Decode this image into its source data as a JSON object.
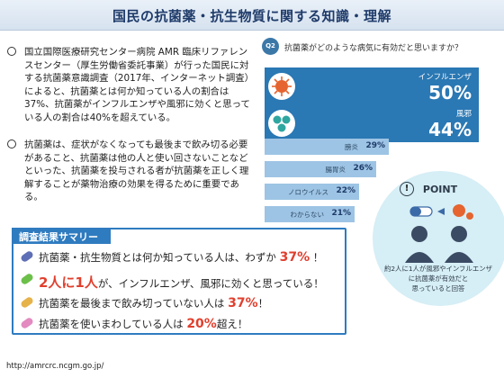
{
  "title": "国民の抗菌薬・抗生物質に関する知識・理解",
  "paragraphs": {
    "p1": "国立国際医療研究センター病院 AMR 臨床リファレンスセンター（厚生労働省委託事業）が行った国民に対する抗菌薬意識調査（2017年、インターネット調査）によると、抗菌薬とは何か知っている人の割合は37%、抗菌薬がインフルエンザや風邪に効くと思っている人の割合は40%を超えている。",
    "p2": "抗菌薬は、症状がなくなっても最後まで飲み切る必要があること、抗菌薬は他の人と使い回さないことなどといった、抗菌薬を投与される者が抗菌薬を正しく理解することが薬物治療の効果を得るために重要である。"
  },
  "question": {
    "badge": "Q2",
    "text": "抗菌薬がどのような病気に有効だと思いますか？"
  },
  "chart_data": {
    "type": "bar",
    "categories": [
      "インフルエンザ",
      "風邪",
      "膀炎",
      "腸胃炎",
      "ノロウイルス",
      "わからない"
    ],
    "values": [
      50,
      44,
      29,
      26,
      22,
      21
    ],
    "value_labels": [
      "50%",
      "44%",
      "29%",
      "26%",
      "22%",
      "21%"
    ]
  },
  "point": {
    "title": "POINT",
    "caption_line1": "約2人に1人が風邪やインフルエンザ",
    "caption_line2": "に抗菌薬が有効だと",
    "caption_line3": "思っていると回答"
  },
  "summary": {
    "heading": "調査結果サマリー",
    "row1_text": "抗菌薬・抗生物質とは何か知っている人は、わずか",
    "row1_num": "37%",
    "row1_end": "！",
    "row2_big": "2人に1人",
    "row2_text": "が、インフルエンザ、風邪に効くと思っている！",
    "row3_text": "抗菌薬を最後まで飲み切っていない人は",
    "row3_num": "37%",
    "row3_end": "！",
    "row4_text": "抗菌薬を使いまわしている人は",
    "row4_num": "20%",
    "row4_end": "超え！"
  },
  "url": "http://amrcrc.ncgm.go.jp/",
  "colors": {
    "bar_dark": "#2a78b4",
    "bar_light": "#9dc4e4",
    "accent_red": "#e0402e",
    "pill1": "#5f6fb6",
    "pill2": "#6cc04a",
    "pill3": "#e6b34a",
    "pill4": "#e38ac0"
  }
}
